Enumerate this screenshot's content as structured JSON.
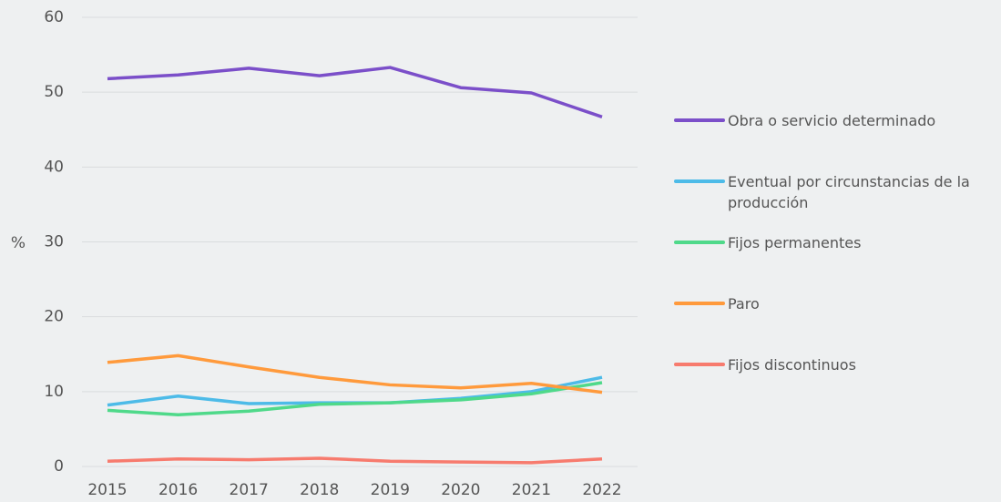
{
  "chart_data": {
    "type": "line",
    "y_label": "%",
    "x": [
      "2015",
      "2016",
      "2017",
      "2018",
      "2019",
      "2020",
      "2021",
      "2022"
    ],
    "ylim": [
      0,
      60
    ],
    "yticks": [
      0,
      10,
      20,
      30,
      40,
      50,
      60
    ],
    "grid": true,
    "series": [
      {
        "name": "Obra o servicio determinado",
        "color": "#7b4fc9",
        "values": [
          51.8,
          52.3,
          53.2,
          52.2,
          53.3,
          50.6,
          49.9,
          46.7
        ]
      },
      {
        "name": "Eventual por circunstancias de la producción",
        "color": "#4dbbe8",
        "values": [
          8.2,
          9.4,
          8.4,
          8.5,
          8.5,
          9.1,
          10.0,
          11.9
        ]
      },
      {
        "name": "Fijos permanentes",
        "color": "#4fd98a",
        "values": [
          7.5,
          6.9,
          7.4,
          8.3,
          8.5,
          8.9,
          9.7,
          11.2
        ]
      },
      {
        "name": "Paro",
        "color": "#ff9a3c",
        "values": [
          13.9,
          14.8,
          13.3,
          11.9,
          10.9,
          10.5,
          11.1,
          9.9
        ]
      },
      {
        "name": "Fijos discontinuos",
        "color": "#f77b6e",
        "values": [
          0.7,
          1.0,
          0.9,
          1.1,
          0.7,
          0.6,
          0.5,
          1.0
        ]
      }
    ]
  }
}
